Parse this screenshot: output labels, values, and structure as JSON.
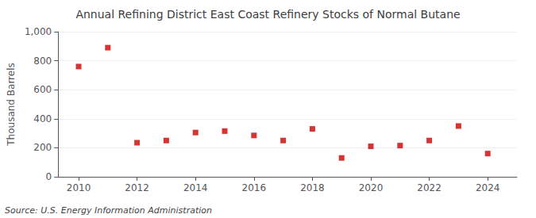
{
  "chart_data": {
    "type": "scatter",
    "title": "Annual Refining District East Coast Refinery Stocks of Normal Butane",
    "ylabel": "Thousand Barrels",
    "annotations": [
      "Source: U.S. Energy Information Administration"
    ],
    "x": [
      2010,
      2011,
      2012,
      2013,
      2014,
      2015,
      2016,
      2017,
      2018,
      2019,
      2020,
      2021,
      2022,
      2023,
      2024
    ],
    "values": [
      760,
      890,
      235,
      250,
      305,
      315,
      285,
      250,
      330,
      130,
      210,
      215,
      250,
      350,
      160
    ],
    "color": "#cc0000",
    "marker": "square",
    "xlim": [
      2009.3,
      2025.0
    ],
    "xticks": [
      2010,
      2012,
      2014,
      2016,
      2018,
      2020,
      2022,
      2024
    ],
    "ylim": [
      0,
      1000
    ],
    "yticks": [
      0,
      200,
      400,
      600,
      800,
      {
        "value": 1000,
        "label": "1,000"
      }
    ],
    "grid": true
  }
}
